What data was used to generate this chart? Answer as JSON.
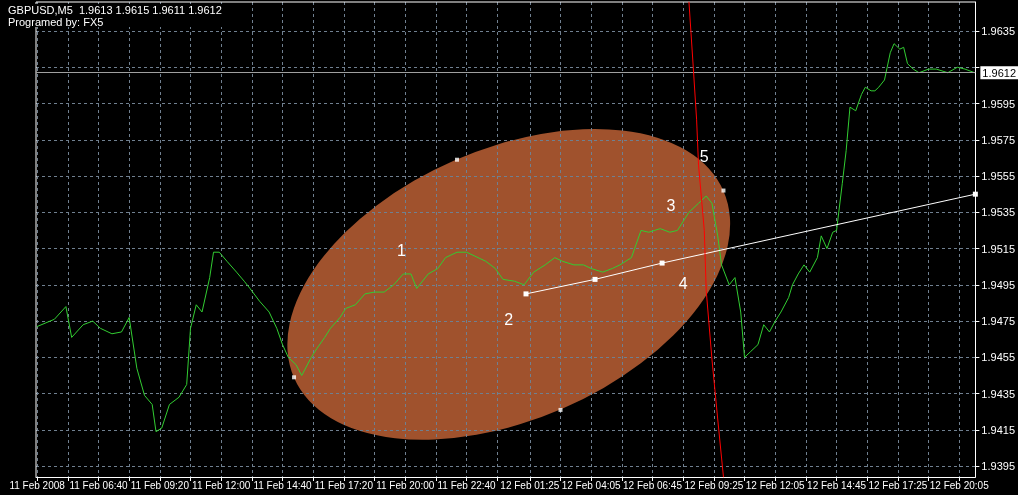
{
  "chart_data": {
    "type": "line",
    "title": "GBPUSD,M5  1.9613 1.9615 1.9611 1.9612",
    "subtitle": "Programed by: FX5",
    "xlim": [
      "2008-02-11T03:57",
      "2008-02-12T20:47"
    ],
    "ylim": [
      1.9389,
      1.9651
    ],
    "xticks": [
      {
        "value": "2008-02-11T04:00",
        "label": "11 Feb 2008"
      },
      {
        "value": "2008-02-11T05:20",
        "label": null
      },
      {
        "value": "2008-02-11T06:40",
        "label": "11 Feb 06:40"
      },
      {
        "value": "2008-02-11T08:00",
        "label": null
      },
      {
        "value": "2008-02-11T09:20",
        "label": "11 Feb 09:20"
      },
      {
        "value": "2008-02-11T10:40",
        "label": null
      },
      {
        "value": "2008-02-11T12:00",
        "label": "11 Feb 12:00"
      },
      {
        "value": "2008-02-11T13:20",
        "label": null
      },
      {
        "value": "2008-02-11T14:40",
        "label": "11 Feb 14:40"
      },
      {
        "value": "2008-02-11T16:00",
        "label": null
      },
      {
        "value": "2008-02-11T17:20",
        "label": "11 Feb 17:20"
      },
      {
        "value": "2008-02-11T18:40",
        "label": null
      },
      {
        "value": "2008-02-11T20:00",
        "label": "11 Feb 20:00"
      },
      {
        "value": "2008-02-11T21:20",
        "label": null
      },
      {
        "value": "2008-02-11T22:40",
        "label": "11 Feb 22:40"
      },
      {
        "value": "2008-02-12T00:00",
        "label": null
      },
      {
        "value": "2008-02-12T01:25",
        "label": "12 Feb 01:25"
      },
      {
        "value": "2008-02-12T02:45",
        "label": null
      },
      {
        "value": "2008-02-12T04:05",
        "label": "12 Feb 04:05"
      },
      {
        "value": "2008-02-12T05:25",
        "label": null
      },
      {
        "value": "2008-02-12T06:45",
        "label": "12 Feb 06:45"
      },
      {
        "value": "2008-02-12T08:05",
        "label": null
      },
      {
        "value": "2008-02-12T09:25",
        "label": "12 Feb 09:25"
      },
      {
        "value": "2008-02-12T10:45",
        "label": null
      },
      {
        "value": "2008-02-12T12:05",
        "label": "12 Feb 12:05"
      },
      {
        "value": "2008-02-12T13:25",
        "label": null
      },
      {
        "value": "2008-02-12T14:45",
        "label": "12 Feb 14:45"
      },
      {
        "value": "2008-02-12T16:05",
        "label": null
      },
      {
        "value": "2008-02-12T17:25",
        "label": "12 Feb 17:25"
      },
      {
        "value": "2008-02-12T18:45",
        "label": null
      },
      {
        "value": "2008-02-12T20:05",
        "label": "12 Feb 20:05"
      }
    ],
    "yticks": [
      1.9395,
      1.9415,
      1.9435,
      1.9455,
      1.9475,
      1.9495,
      1.9515,
      1.9535,
      1.9555,
      1.9575,
      1.9595,
      {
        "value": 1.9615,
        "label": null
      },
      1.9635
    ],
    "grid": true,
    "line_style": "solid",
    "ref_lines": [
      {
        "axis": "y",
        "value": 1.9612,
        "label": "1.9612",
        "color": "#a0a0a0"
      }
    ],
    "series": [
      {
        "color": "#32cd32",
        "marker": "none",
        "x": [
          "2008-02-11T04:00",
          "2008-02-11T04:45",
          "2008-02-11T05:15",
          "2008-02-11T05:30",
          "2008-02-11T06:00",
          "2008-02-11T06:25",
          "2008-02-11T06:45",
          "2008-02-11T07:15",
          "2008-02-11T07:40",
          "2008-02-11T08:00",
          "2008-02-11T08:20",
          "2008-02-11T08:40",
          "2008-02-11T09:00",
          "2008-02-11T09:10",
          "2008-02-11T09:25",
          "2008-02-11T09:45",
          "2008-02-11T10:10",
          "2008-02-11T10:30",
          "2008-02-11T10:40",
          "2008-02-11T10:55",
          "2008-02-11T11:10",
          "2008-02-11T11:30",
          "2008-02-11T11:40",
          "2008-02-11T11:55",
          "2008-02-11T12:15",
          "2008-02-11T12:40",
          "2008-02-11T13:00",
          "2008-02-11T13:15",
          "2008-02-11T13:40",
          "2008-02-11T14:05",
          "2008-02-11T14:25",
          "2008-02-11T14:40",
          "2008-02-11T14:55",
          "2008-02-11T15:15",
          "2008-02-11T15:30",
          "2008-02-11T15:55",
          "2008-02-11T16:10",
          "2008-02-11T16:30",
          "2008-02-11T16:45",
          "2008-02-11T17:10",
          "2008-02-11T17:25",
          "2008-02-11T17:50",
          "2008-02-11T18:15",
          "2008-02-11T18:40",
          "2008-02-11T19:05",
          "2008-02-11T19:30",
          "2008-02-11T19:55",
          "2008-02-11T20:15",
          "2008-02-11T20:30",
          "2008-02-11T21:00",
          "2008-02-11T21:25",
          "2008-02-11T21:45",
          "2008-02-11T22:15",
          "2008-02-11T22:40",
          "2008-02-11T23:00",
          "2008-02-11T23:30",
          "2008-02-11T23:55",
          "2008-02-12T00:15",
          "2008-02-12T00:45",
          "2008-02-12T01:10",
          "2008-02-12T01:35",
          "2008-02-12T02:05",
          "2008-02-12T02:30",
          "2008-02-12T02:50",
          "2008-02-12T03:20",
          "2008-02-12T03:45",
          "2008-02-12T04:05",
          "2008-02-12T04:35",
          "2008-02-12T05:00",
          "2008-02-12T05:20",
          "2008-02-12T05:50",
          "2008-02-12T06:15",
          "2008-02-12T06:35",
          "2008-02-12T07:05",
          "2008-02-12T07:30",
          "2008-02-12T07:50",
          "2008-02-12T08:20",
          "2008-02-12T08:45",
          "2008-02-12T09:05",
          "2008-02-12T09:20",
          "2008-02-12T09:35",
          "2008-02-12T09:45",
          "2008-02-12T10:05",
          "2008-02-12T10:20",
          "2008-02-12T10:35",
          "2008-02-12T10:45",
          "2008-02-12T11:00",
          "2008-02-12T11:20",
          "2008-02-12T11:35",
          "2008-02-12T11:50",
          "2008-02-12T12:05",
          "2008-02-12T12:20",
          "2008-02-12T12:40",
          "2008-02-12T12:50",
          "2008-02-12T13:05",
          "2008-02-12T13:20",
          "2008-02-12T13:35",
          "2008-02-12T13:55",
          "2008-02-12T14:05",
          "2008-02-12T14:20",
          "2008-02-12T14:35",
          "2008-02-12T14:45",
          "2008-02-12T15:00",
          "2008-02-12T15:10",
          "2008-02-12T15:20",
          "2008-02-12T15:35",
          "2008-02-12T15:50",
          "2008-02-12T16:00",
          "2008-02-12T16:15",
          "2008-02-12T16:25",
          "2008-02-12T16:35",
          "2008-02-12T16:50",
          "2008-02-12T17:05",
          "2008-02-12T17:15",
          "2008-02-12T17:30",
          "2008-02-12T17:40",
          "2008-02-12T17:50",
          "2008-02-12T18:05",
          "2008-02-12T18:20",
          "2008-02-12T18:45",
          "2008-02-12T19:05",
          "2008-02-12T19:35",
          "2008-02-12T20:00",
          "2008-02-12T20:20",
          "2008-02-12T20:45"
        ],
        "values": [
          1.9472,
          1.9476,
          1.9483,
          1.9466,
          1.9473,
          1.9475,
          1.9471,
          1.9468,
          1.9469,
          1.9477,
          1.9449,
          1.9434,
          1.9429,
          1.9414,
          1.9416,
          1.9429,
          1.9433,
          1.944,
          1.9471,
          1.9484,
          1.948,
          1.9499,
          1.9513,
          1.9513,
          1.9508,
          1.9502,
          1.9497,
          1.9493,
          1.9486,
          1.948,
          1.9471,
          1.9462,
          1.9455,
          1.9451,
          1.9445,
          1.9455,
          1.946,
          1.9466,
          1.9471,
          1.9477,
          1.9482,
          1.9484,
          1.949,
          1.9491,
          1.9491,
          1.9495,
          1.9501,
          1.9501,
          1.9493,
          1.9501,
          1.9504,
          1.951,
          1.9513,
          1.9513,
          1.9511,
          1.9508,
          1.9504,
          1.9498,
          1.9497,
          1.9495,
          1.9502,
          1.9506,
          1.951,
          1.9508,
          1.9506,
          1.9506,
          1.9504,
          1.9502,
          1.9504,
          1.9506,
          1.951,
          1.9525,
          1.9524,
          1.9526,
          1.9524,
          1.9525,
          1.9535,
          1.954,
          1.9544,
          1.954,
          1.9522,
          1.9506,
          1.9495,
          1.9499,
          1.948,
          1.9455,
          1.9458,
          1.9462,
          1.9473,
          1.9469,
          1.9475,
          1.948,
          1.9488,
          1.9495,
          1.9501,
          1.9506,
          1.9502,
          1.951,
          1.9522,
          1.9515,
          1.9524,
          1.9525,
          1.9551,
          1.9569,
          1.9593,
          1.9591,
          1.96,
          1.9604,
          1.9602,
          1.9602,
          1.9604,
          1.9608,
          1.9623,
          1.9628,
          1.9625,
          1.9626,
          1.9617,
          1.9614,
          1.9612,
          1.9614,
          1.9614,
          1.9612,
          1.9615,
          1.9614,
          1.9612
        ]
      },
      {
        "color": "#ffffff",
        "marker": "square",
        "x": [
          "2008-02-12T01:15",
          "2008-02-12T04:15",
          "2008-02-12T07:10",
          "2008-02-12T20:47"
        ],
        "values": [
          1.949,
          1.9498,
          1.9507,
          1.9545
        ]
      },
      {
        "type": "scatter",
        "color": "#ffffff",
        "marker": "square",
        "x": [
          "2008-02-11T22:15",
          "2008-02-12T09:50",
          "2008-02-12T02:45",
          "2008-02-11T15:10"
        ],
        "values": [
          1.9564,
          1.9547,
          1.9426,
          1.9444
        ]
      },
      {
        "color": "#ff0000",
        "marker": "none",
        "x": [
          "2008-02-12T08:20",
          "2008-02-12T08:30",
          "2008-02-12T08:40",
          "2008-02-12T08:45",
          "2008-02-12T09:00",
          "2008-02-12T09:05",
          "2008-02-12T09:20",
          "2008-02-12T09:35",
          "2008-02-12T09:50"
        ],
        "values": [
          1.9651,
          1.9619,
          1.9586,
          1.9561,
          1.9525,
          1.9492,
          1.9454,
          1.9421,
          1.9389
        ]
      }
    ],
    "annotations": [
      "1",
      "2",
      "3",
      "4",
      "5"
    ]
  }
}
